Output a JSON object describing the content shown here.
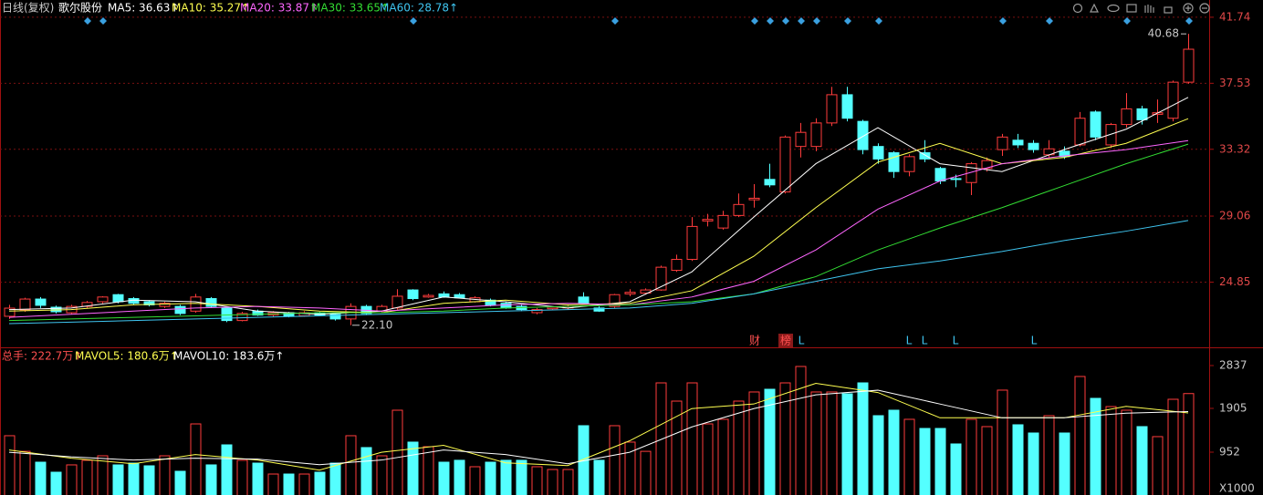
{
  "chart_data": [
    {
      "type": "candlestick",
      "period": "日线(复权)",
      "stock": "歌尔股份",
      "ylim": [
        20.75,
        42.84
      ],
      "yticks": [
        24.85,
        29.06,
        33.32,
        37.53,
        41.74
      ],
      "grid": true,
      "up_color": "#ff3c3c",
      "down_color": "#54ffff",
      "open": [
        22.67,
        23.08,
        23.77,
        23.25,
        22.9,
        23.3,
        23.6,
        24.05,
        23.8,
        23.6,
        23.3,
        23.3,
        23.0,
        23.8,
        23.2,
        22.4,
        23.0,
        22.75,
        22.9,
        22.7,
        22.9,
        22.8,
        22.5,
        23.3,
        23.0,
        23.2,
        24.35,
        23.9,
        24.1,
        24.05,
        23.6,
        23.7,
        23.5,
        23.3,
        22.9,
        23.15,
        23.2,
        23.9,
        23.2,
        23.3,
        24.1,
        24.15,
        24.35,
        25.6,
        26.3,
        28.75,
        28.3,
        29.1,
        30.1,
        31.4,
        30.6,
        33.5,
        33.5,
        35.0,
        36.8,
        35.1,
        33.5,
        33.1,
        31.9,
        33.1,
        32.1,
        31.45,
        31.2,
        32.1,
        33.3,
        33.9,
        33.7,
        32.97,
        33.2,
        33.6,
        35.7,
        33.6,
        34.9,
        35.9,
        35.55,
        35.3,
        37.6
      ],
      "high": [
        23.4,
        23.85,
        23.9,
        23.35,
        23.4,
        23.65,
        23.95,
        24.1,
        23.9,
        23.7,
        23.6,
        23.4,
        24.1,
        23.9,
        23.3,
        22.95,
        23.1,
        23.0,
        22.95,
        23.0,
        22.95,
        22.85,
        23.5,
        23.4,
        23.4,
        24.4,
        24.4,
        24.1,
        24.25,
        24.15,
        23.95,
        23.8,
        23.6,
        23.4,
        23.2,
        23.3,
        23.4,
        24.2,
        23.3,
        24.1,
        24.4,
        24.45,
        25.9,
        26.6,
        29.0,
        29.2,
        29.4,
        30.5,
        31.1,
        32.4,
        34.2,
        35.0,
        35.3,
        37.3,
        37.3,
        35.2,
        33.7,
        33.2,
        33.0,
        33.9,
        32.2,
        31.7,
        32.5,
        32.8,
        34.3,
        34.3,
        33.9,
        33.9,
        33.5,
        35.7,
        35.8,
        35.0,
        36.9,
        36.1,
        36.5,
        37.7,
        40.68
      ],
      "low": [
        22.5,
        22.95,
        23.2,
        22.85,
        22.8,
        23.2,
        23.5,
        23.5,
        23.4,
        23.3,
        23.2,
        22.75,
        22.9,
        23.2,
        22.3,
        22.35,
        22.7,
        22.65,
        22.6,
        22.65,
        22.7,
        22.4,
        22.1,
        22.75,
        22.9,
        23.1,
        23.7,
        23.85,
        23.85,
        23.8,
        23.55,
        23.3,
        23.15,
        23.0,
        22.8,
        23.05,
        23.1,
        23.4,
        22.95,
        23.2,
        23.95,
        24.05,
        24.3,
        25.5,
        26.2,
        28.4,
        28.2,
        29.0,
        29.6,
        30.9,
        30.5,
        32.8,
        33.2,
        34.8,
        35.1,
        33.0,
        32.4,
        31.5,
        31.6,
        32.5,
        31.1,
        30.9,
        30.4,
        31.9,
        32.9,
        33.4,
        33.1,
        32.8,
        32.7,
        33.5,
        33.9,
        33.4,
        34.7,
        34.9,
        35.0,
        35.1,
        37.5
      ],
      "close": [
        23.19,
        23.77,
        23.37,
        22.96,
        23.3,
        23.55,
        23.9,
        23.6,
        23.5,
        23.4,
        23.5,
        22.85,
        23.9,
        23.3,
        22.4,
        22.85,
        22.75,
        22.9,
        22.7,
        22.9,
        22.75,
        22.5,
        23.3,
        22.85,
        23.3,
        23.95,
        23.8,
        24.0,
        23.9,
        23.85,
        23.85,
        23.4,
        23.2,
        23.1,
        23.1,
        23.25,
        23.3,
        23.5,
        23.0,
        24.05,
        24.2,
        24.35,
        25.8,
        26.3,
        28.4,
        28.85,
        29.1,
        29.8,
        30.2,
        31.05,
        34.1,
        34.4,
        35.0,
        36.8,
        35.3,
        33.3,
        32.7,
        31.9,
        32.85,
        32.7,
        31.3,
        31.4,
        32.4,
        32.6,
        34.1,
        33.6,
        33.3,
        33.35,
        32.85,
        35.3,
        34.1,
        34.9,
        35.9,
        35.2,
        35.65,
        37.6,
        39.7
      ],
      "extreme_labels": [
        {
          "value": 40.68,
          "label": "40.68"
        },
        {
          "value": 22.1,
          "label": "22.10"
        }
      ],
      "events": [
        "财",
        "榜",
        "L",
        "L",
        "L",
        "L",
        "L"
      ],
      "lines": [
        {
          "label": "MA5: 36.63↑",
          "color": "#ffffff",
          "x": [
            0,
            4,
            8,
            12,
            16,
            20,
            24,
            28,
            32,
            36,
            40,
            44,
            48,
            52,
            56,
            60,
            64,
            68,
            72,
            76
          ],
          "values": [
            23.1,
            23.2,
            23.7,
            23.6,
            23.0,
            22.8,
            23.0,
            23.9,
            23.6,
            23.2,
            23.6,
            25.5,
            29.0,
            32.4,
            34.7,
            32.4,
            31.9,
            33.3,
            34.6,
            36.63
          ]
        },
        {
          "label": "MA10: 35.27↑",
          "color": "#ffff50",
          "x": [
            0,
            4,
            8,
            12,
            16,
            20,
            24,
            28,
            32,
            36,
            40,
            44,
            48,
            52,
            56,
            60,
            64,
            68,
            72,
            76
          ],
          "values": [
            23.0,
            23.1,
            23.4,
            23.5,
            23.3,
            23.0,
            22.9,
            23.5,
            23.7,
            23.4,
            23.5,
            24.3,
            26.5,
            29.6,
            32.5,
            33.7,
            32.4,
            32.8,
            33.7,
            35.27
          ]
        },
        {
          "label": "MA20: 33.87↑",
          "color": "#ff66ff",
          "x": [
            0,
            4,
            8,
            12,
            16,
            20,
            24,
            28,
            32,
            36,
            40,
            44,
            48,
            52,
            56,
            60,
            64,
            68,
            72,
            76
          ],
          "values": [
            22.6,
            22.8,
            23.0,
            23.2,
            23.3,
            23.2,
            23.0,
            23.2,
            23.4,
            23.5,
            23.4,
            23.9,
            24.9,
            26.9,
            29.5,
            31.3,
            32.4,
            32.9,
            33.3,
            33.87
          ]
        },
        {
          "label": "MA30: 33.65↑",
          "color": "#33dd33",
          "x": [
            0,
            4,
            8,
            12,
            16,
            20,
            24,
            28,
            32,
            36,
            40,
            44,
            48,
            52,
            56,
            60,
            64,
            68,
            72,
            76
          ],
          "values": [
            22.4,
            22.5,
            22.6,
            22.7,
            22.8,
            22.9,
            22.9,
            23.0,
            23.2,
            23.3,
            23.4,
            23.6,
            24.1,
            25.2,
            26.9,
            28.3,
            29.6,
            31.0,
            32.4,
            33.65
          ]
        },
        {
          "label": "MA60: 28.78↑",
          "color": "#3fc5f0",
          "x": [
            0,
            4,
            8,
            12,
            16,
            20,
            24,
            28,
            32,
            36,
            40,
            44,
            48,
            52,
            56,
            60,
            64,
            68,
            72,
            76
          ],
          "values": [
            22.2,
            22.3,
            22.4,
            22.5,
            22.6,
            22.7,
            22.8,
            22.9,
            23.0,
            23.1,
            23.2,
            23.5,
            24.1,
            24.9,
            25.7,
            26.2,
            26.8,
            27.5,
            28.1,
            28.78
          ]
        }
      ]
    },
    {
      "type": "bar",
      "total_label": "总手: 222.7万↑",
      "unit_label": "X1000",
      "ylim": [
        0,
        3194
      ],
      "yticks": [
        952,
        1905,
        2837
      ],
      "values": [
        1310,
        970,
        734,
        516,
        675,
        775,
        873,
        675,
        714,
        655,
        873,
        536,
        1567,
        675,
        1111,
        775,
        714,
        476,
        476,
        476,
        516,
        714,
        1310,
        1052,
        873,
        1865,
        1171,
        1071,
        734,
        775,
        635,
        734,
        775,
        775,
        635,
        575,
        575,
        1528,
        775,
        1528,
        1171,
        970,
        2460,
        2063,
        2460,
        1567,
        1667,
        2063,
        2262,
        2321,
        2460,
        2817,
        2262,
        2262,
        2222,
        2460,
        1746,
        1865,
        1667,
        1468,
        1468,
        1131,
        1667,
        1508,
        2302,
        1548,
        1369,
        1746,
        1369,
        2599,
        2123,
        1944,
        1865,
        1508,
        1290,
        2103,
        2227
      ],
      "lines": [
        {
          "label": "MAVOL5: 180.6万↑",
          "color": "#ffff50",
          "x": [
            0,
            4,
            8,
            12,
            16,
            20,
            24,
            28,
            32,
            36,
            40,
            44,
            48,
            52,
            56,
            60,
            64,
            68,
            72,
            76
          ],
          "values": [
            1000,
            820,
            700,
            900,
            780,
            560,
            950,
            1100,
            720,
            660,
            1200,
            1900,
            2000,
            2450,
            2250,
            1700,
            1700,
            1700,
            1950,
            1806
          ]
        },
        {
          "label": "MAVOL10: 183.6万↑",
          "color": "#ffffff",
          "x": [
            0,
            4,
            8,
            12,
            16,
            20,
            24,
            28,
            32,
            36,
            40,
            44,
            48,
            52,
            56,
            60,
            64,
            68,
            72,
            76
          ],
          "values": [
            950,
            850,
            780,
            820,
            800,
            680,
            780,
            1000,
            900,
            700,
            950,
            1500,
            1900,
            2200,
            2300,
            2000,
            1700,
            1700,
            1800,
            1836
          ]
        }
      ]
    }
  ]
}
